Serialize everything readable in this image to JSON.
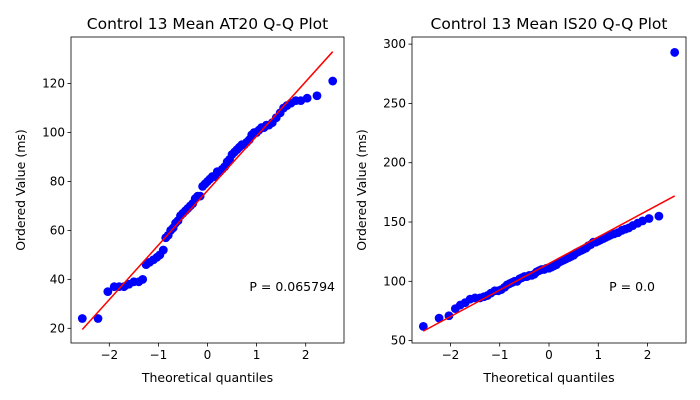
{
  "chart_data": [
    {
      "type": "scatter",
      "title": "Control 13 Mean AT20 Q-Q Plot",
      "xlabel": "Theoretical quantiles",
      "ylabel": "Ordered Value (ms)",
      "annotation": "P = 0.065794",
      "xlim": [
        -2.78,
        2.78
      ],
      "ylim": [
        14,
        139
      ],
      "xticks": [
        -2,
        -1,
        0,
        1,
        2
      ],
      "yticks": [
        20,
        40,
        60,
        80,
        100,
        120
      ],
      "fit_line": {
        "x": [
          -2.55,
          2.55
        ],
        "y": [
          19.5,
          133
        ]
      },
      "series": [
        {
          "values_x": [
            -2.55,
            -2.23,
            -2.03,
            -1.9,
            -1.8,
            -1.7,
            -1.6,
            -1.5,
            -1.4,
            -1.32,
            -1.25,
            -1.18,
            -1.1,
            -1.03,
            -0.97,
            -0.9,
            -0.85,
            -0.8,
            -0.75,
            -0.7,
            -0.65,
            -0.6,
            -0.55,
            -0.5,
            -0.45,
            -0.4,
            -0.35,
            -0.3,
            -0.25,
            -0.2,
            -0.15,
            -0.1,
            -0.05,
            0.0,
            0.05,
            0.1,
            0.15,
            0.2,
            0.25,
            0.3,
            0.35,
            0.4,
            0.45,
            0.5,
            0.55,
            0.6,
            0.65,
            0.7,
            0.75,
            0.8,
            0.85,
            0.9,
            0.95,
            1.0,
            1.05,
            1.1,
            1.15,
            1.2,
            1.25,
            1.32,
            1.4,
            1.48,
            1.55,
            1.62,
            1.7,
            1.8,
            1.9,
            2.03,
            2.23,
            2.55
          ],
          "values_y": [
            24,
            24,
            35,
            37,
            37,
            37,
            38,
            39,
            39,
            40,
            46,
            47,
            48,
            49,
            50,
            52,
            57,
            58,
            60,
            61,
            63,
            64,
            66,
            67,
            68,
            69,
            70,
            71,
            73,
            74,
            74,
            78,
            79,
            80,
            81,
            82,
            82,
            84,
            84,
            85,
            86,
            88,
            89,
            91,
            92,
            93,
            94,
            95,
            95,
            96,
            97,
            99,
            100,
            100,
            101,
            102,
            102,
            103,
            103,
            104,
            106,
            108,
            110,
            111,
            112,
            113,
            113,
            114,
            115,
            121
          ]
        }
      ]
    },
    {
      "type": "scatter",
      "title": "Control 13 Mean IS20 Q-Q Plot",
      "xlabel": "Theoretical quantiles",
      "ylabel": "Ordered Value (ms)",
      "annotation": "P = 0.0",
      "xlim": [
        -2.78,
        2.78
      ],
      "ylim": [
        48,
        306
      ],
      "xticks": [
        -2,
        -1,
        0,
        1,
        2
      ],
      "yticks": [
        50,
        100,
        150,
        200,
        250,
        300
      ],
      "fit_line": {
        "x": [
          -2.55,
          2.55
        ],
        "y": [
          58,
          172
        ]
      },
      "series": [
        {
          "values_x": [
            -2.55,
            -2.23,
            -2.03,
            -1.9,
            -1.8,
            -1.7,
            -1.6,
            -1.5,
            -1.4,
            -1.32,
            -1.25,
            -1.18,
            -1.1,
            -1.03,
            -0.97,
            -0.9,
            -0.85,
            -0.8,
            -0.75,
            -0.7,
            -0.65,
            -0.6,
            -0.55,
            -0.5,
            -0.45,
            -0.4,
            -0.35,
            -0.3,
            -0.25,
            -0.2,
            -0.15,
            -0.1,
            -0.05,
            0.0,
            0.05,
            0.1,
            0.15,
            0.2,
            0.25,
            0.3,
            0.35,
            0.4,
            0.45,
            0.5,
            0.55,
            0.6,
            0.65,
            0.7,
            0.75,
            0.8,
            0.85,
            0.9,
            0.95,
            1.0,
            1.05,
            1.1,
            1.15,
            1.2,
            1.25,
            1.32,
            1.4,
            1.48,
            1.55,
            1.62,
            1.7,
            1.8,
            1.9,
            2.03,
            2.23,
            2.55
          ],
          "values_y": [
            62,
            69,
            71,
            77,
            80,
            82,
            85,
            86,
            86,
            87,
            88,
            90,
            92,
            92,
            93,
            95,
            97,
            98,
            99,
            100,
            100,
            102,
            103,
            104,
            104,
            105,
            105,
            106,
            108,
            109,
            110,
            110,
            111,
            111,
            112,
            113,
            114,
            116,
            117,
            118,
            119,
            120,
            121,
            122,
            124,
            125,
            126,
            127,
            128,
            130,
            131,
            133,
            133,
            134,
            135,
            136,
            137,
            138,
            139,
            140,
            141,
            143,
            144,
            145,
            147,
            149,
            151,
            153,
            155,
            293
          ]
        }
      ]
    }
  ]
}
